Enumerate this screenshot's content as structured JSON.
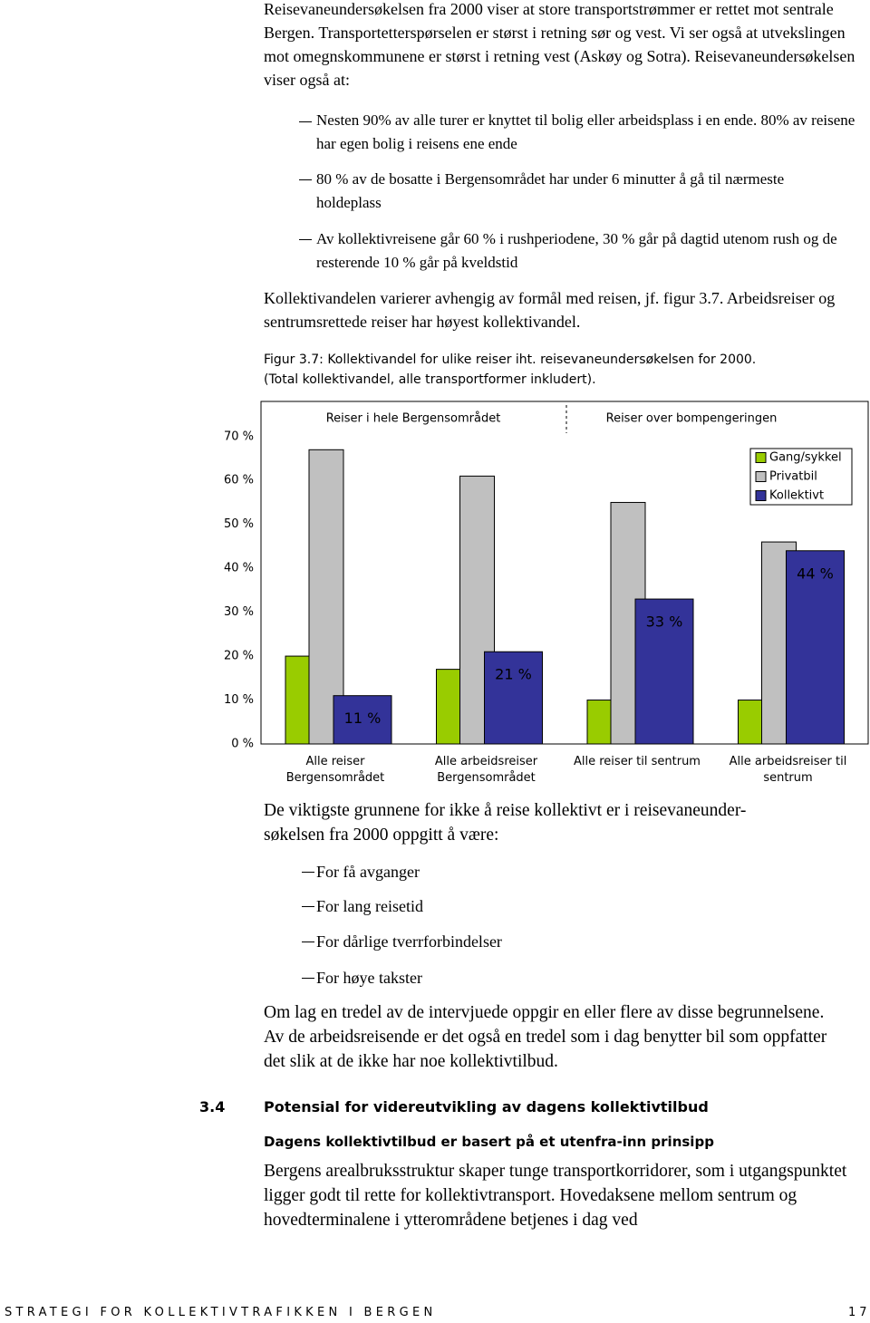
{
  "intro": {
    "paragraph": "Reisevaneundersøkelsen fra 2000 viser at store transportstrømmer er rettet mot sentrale Bergen. Transportetterspørselen er størst i retning sør og vest. Vi ser også at utvekslingen mot omegnskommunene er størst i retning vest (Askøy og Sotra). Reisevaneundersøkelsen viser også at:",
    "bullets": [
      "Nesten 90% av alle turer er knyttet til bolig eller arbeidsplass i en ende. 80% av reisene har egen bolig i reisens ene ende",
      "80 % av de bosatte i Bergensområdet har under 6 minutter å gå til nærmeste holdeplass",
      "Av kollektivreisene går 60 % i rushperiodene, 30 % går på dagtid utenom rush og de resterende 10 % går på kveldstid"
    ],
    "paragraph2": "Kollektivandelen varierer avhengig av formål med reisen, jf. figur 3.7. Arbeidsreiser og sentrumsrettede reiser har høyest kollektivandel.",
    "caption": [
      "Figur 3.7: Kollektivandel for ulike reiser iht. reisevaneundersøkelsen for 2000.",
      "(Total kollektivandel, alle transportformer inkludert)."
    ]
  },
  "chart_data": {
    "type": "bar",
    "annotations": [
      "Reiser i hele Bergensområdet",
      "Reiser over bompengeringen"
    ],
    "categories": [
      "Alle reiser Bergensområdet",
      "Alle arbeidsreiser Bergensområdet",
      "Alle reiser til sentrum",
      "Alle arbeidsreiser til sentrum"
    ],
    "series": [
      {
        "name": "Gang/sykkel",
        "color": "#99cc00",
        "values": [
          20,
          17,
          10,
          10
        ]
      },
      {
        "name": "Privatbil",
        "color": "#c0c0c0",
        "values": [
          67,
          61,
          55,
          46
        ]
      },
      {
        "name": "Kollektivt",
        "color": "#333399",
        "values": [
          11,
          21,
          33,
          44
        ],
        "value_labels": [
          "11 %",
          "21 %",
          "33 %",
          "44 %"
        ]
      }
    ],
    "ylim": [
      0,
      78
    ],
    "yticks": [
      {
        "value": 0,
        "label": "0 %"
      },
      {
        "value": 10,
        "label": "10 %"
      },
      {
        "value": 20,
        "label": "20 %"
      },
      {
        "value": 30,
        "label": "30 %"
      },
      {
        "value": 40,
        "label": "40 %"
      },
      {
        "value": 50,
        "label": "50 %"
      },
      {
        "value": 60,
        "label": "60 %"
      },
      {
        "value": 70,
        "label": "70 %"
      }
    ],
    "legend": "top-right"
  },
  "reasons": {
    "intro": [
      "De viktigste grunnene for ikke å reise kollektivt er i reisevaneunder-",
      "søkelsen fra 2000 oppgitt å være:"
    ],
    "bullets": [
      "For få avganger",
      "For lang reisetid",
      "For dårlige tverrforbindelser",
      "For høye takster"
    ],
    "paragraph": "Om lag en tredel av de intervjuede oppgir en eller flere av disse begrunnelsene. Av de arbeidsreisende er det også en tredel som i dag benytter bil som oppfatter det slik at de ikke har noe kollektivtilbud."
  },
  "section": {
    "number": "3.4",
    "title": "Potensial for videreutvikling av dagens kollektivtilbud",
    "subtitle": "Dagens kollektivtilbud er basert på et utenfra-inn prinsipp",
    "paragraph": "Bergens arealbruksstruktur skaper tunge transportkorridorer, som i utgangspunktet ligger godt til rette for kollektivtransport. Hovedaksene mellom sentrum og hovedterminalene i ytterområdene betjenes i dag ved"
  },
  "footer": {
    "title": "STRATEGI FOR KOLLEKTIVTRAFIKKEN I BERGEN",
    "page": "17"
  }
}
